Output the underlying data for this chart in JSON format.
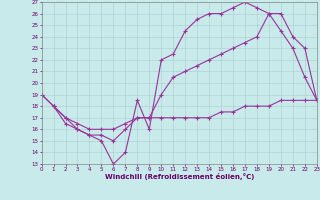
{
  "xlabel": "Windchill (Refroidissement éolien,°C)",
  "bg_color": "#c8eaea",
  "line_color": "#993399",
  "grid_color": "#aacccc",
  "xmin": 0,
  "xmax": 23,
  "ymin": 13,
  "ymax": 27,
  "line1_x": [
    0,
    1,
    2,
    3,
    4,
    5,
    6,
    7,
    8,
    9,
    10,
    11,
    12,
    13,
    14,
    15,
    16,
    17,
    18,
    19,
    20,
    21,
    22,
    23
  ],
  "line1_y": [
    19,
    18,
    16.5,
    16,
    15.5,
    15,
    13,
    14,
    18.5,
    16,
    22,
    22.5,
    24.5,
    25.5,
    26,
    26,
    26.5,
    27,
    26.5,
    26,
    24.5,
    23,
    20.5,
    18.5
  ],
  "line2_x": [
    0,
    1,
    2,
    3,
    4,
    5,
    6,
    7,
    8,
    9,
    10,
    11,
    12,
    13,
    14,
    15,
    16,
    17,
    18,
    19,
    20,
    21,
    22,
    23
  ],
  "line2_y": [
    19,
    18,
    17,
    16,
    15.5,
    15.5,
    15,
    16,
    17,
    17,
    19,
    20.5,
    21,
    21.5,
    22,
    22.5,
    23,
    23.5,
    24,
    26,
    26,
    24,
    23,
    18.5
  ],
  "line3_x": [
    1,
    2,
    3,
    4,
    5,
    6,
    7,
    8,
    9,
    10,
    11,
    12,
    13,
    14,
    15,
    16,
    17,
    18,
    19,
    20,
    21,
    22,
    23
  ],
  "line3_y": [
    18,
    17,
    16.5,
    16,
    16,
    16,
    16.5,
    17,
    17,
    17,
    17,
    17,
    17,
    17,
    17.5,
    17.5,
    18,
    18,
    18,
    18.5,
    18.5,
    18.5,
    18.5
  ]
}
